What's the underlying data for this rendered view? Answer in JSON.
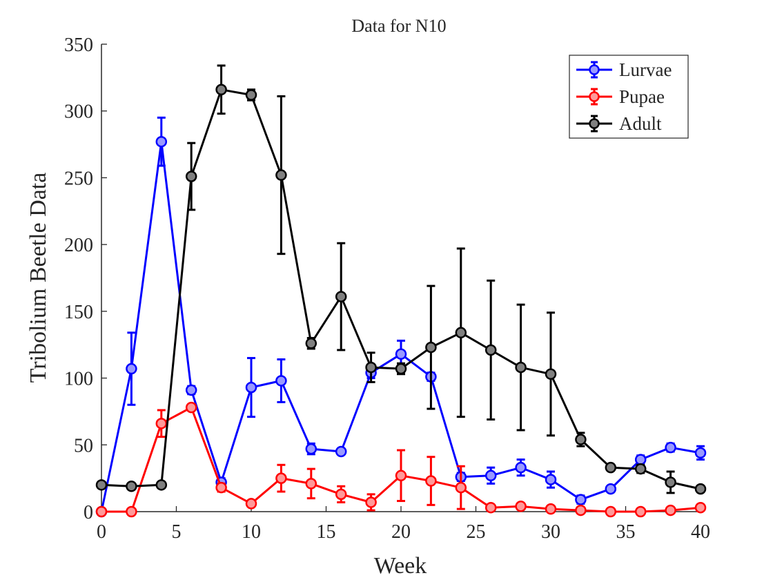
{
  "chart_data": {
    "type": "line",
    "title": "Data for N10",
    "xlabel": "Week",
    "ylabel": "Tribolium Beetle Data",
    "xlim": [
      0,
      40
    ],
    "ylim": [
      0,
      350
    ],
    "xticks": [
      0,
      5,
      10,
      15,
      20,
      25,
      30,
      35,
      40
    ],
    "yticks": [
      0,
      50,
      100,
      150,
      200,
      250,
      300,
      350
    ],
    "grid": false,
    "legend_position": "top-right",
    "x": [
      0,
      2,
      4,
      6,
      8,
      10,
      12,
      14,
      16,
      18,
      20,
      22,
      24,
      26,
      28,
      30,
      32,
      34,
      36,
      38,
      40
    ],
    "series": [
      {
        "name": "Lurvae",
        "color": "#0000ff",
        "marker_fill": "#9999ff",
        "values": [
          0,
          107,
          277,
          91,
          22,
          93,
          98,
          47,
          45,
          104,
          118,
          101,
          26,
          27,
          33,
          24,
          9,
          17,
          39,
          48,
          44
        ],
        "errors": [
          0,
          27,
          18,
          3,
          3,
          22,
          16,
          4,
          2,
          4,
          10,
          3,
          3,
          6,
          6,
          6,
          3,
          2,
          3,
          3,
          5
        ]
      },
      {
        "name": "Pupae",
        "color": "#ff0000",
        "marker_fill": "#ff9999",
        "values": [
          0,
          0,
          66,
          78,
          18,
          6,
          25,
          21,
          13,
          7,
          27,
          23,
          18,
          3,
          4,
          2,
          1,
          0,
          0,
          1,
          3
        ],
        "errors": [
          0,
          0,
          10,
          2,
          3,
          2,
          10,
          11,
          6,
          6,
          19,
          18,
          16,
          2,
          2,
          2,
          1,
          0.5,
          0.5,
          1,
          1
        ]
      },
      {
        "name": "Adult",
        "color": "#000000",
        "marker_fill": "#808080",
        "values": [
          20,
          19,
          20,
          251,
          316,
          312,
          252,
          126,
          161,
          108,
          107,
          123,
          134,
          121,
          108,
          103,
          54,
          33,
          32,
          22,
          17
        ],
        "errors": [
          0,
          0,
          0,
          25,
          18,
          4,
          59,
          4,
          40,
          11,
          4,
          46,
          63,
          52,
          47,
          46,
          5,
          2,
          3,
          8,
          2
        ]
      }
    ]
  }
}
